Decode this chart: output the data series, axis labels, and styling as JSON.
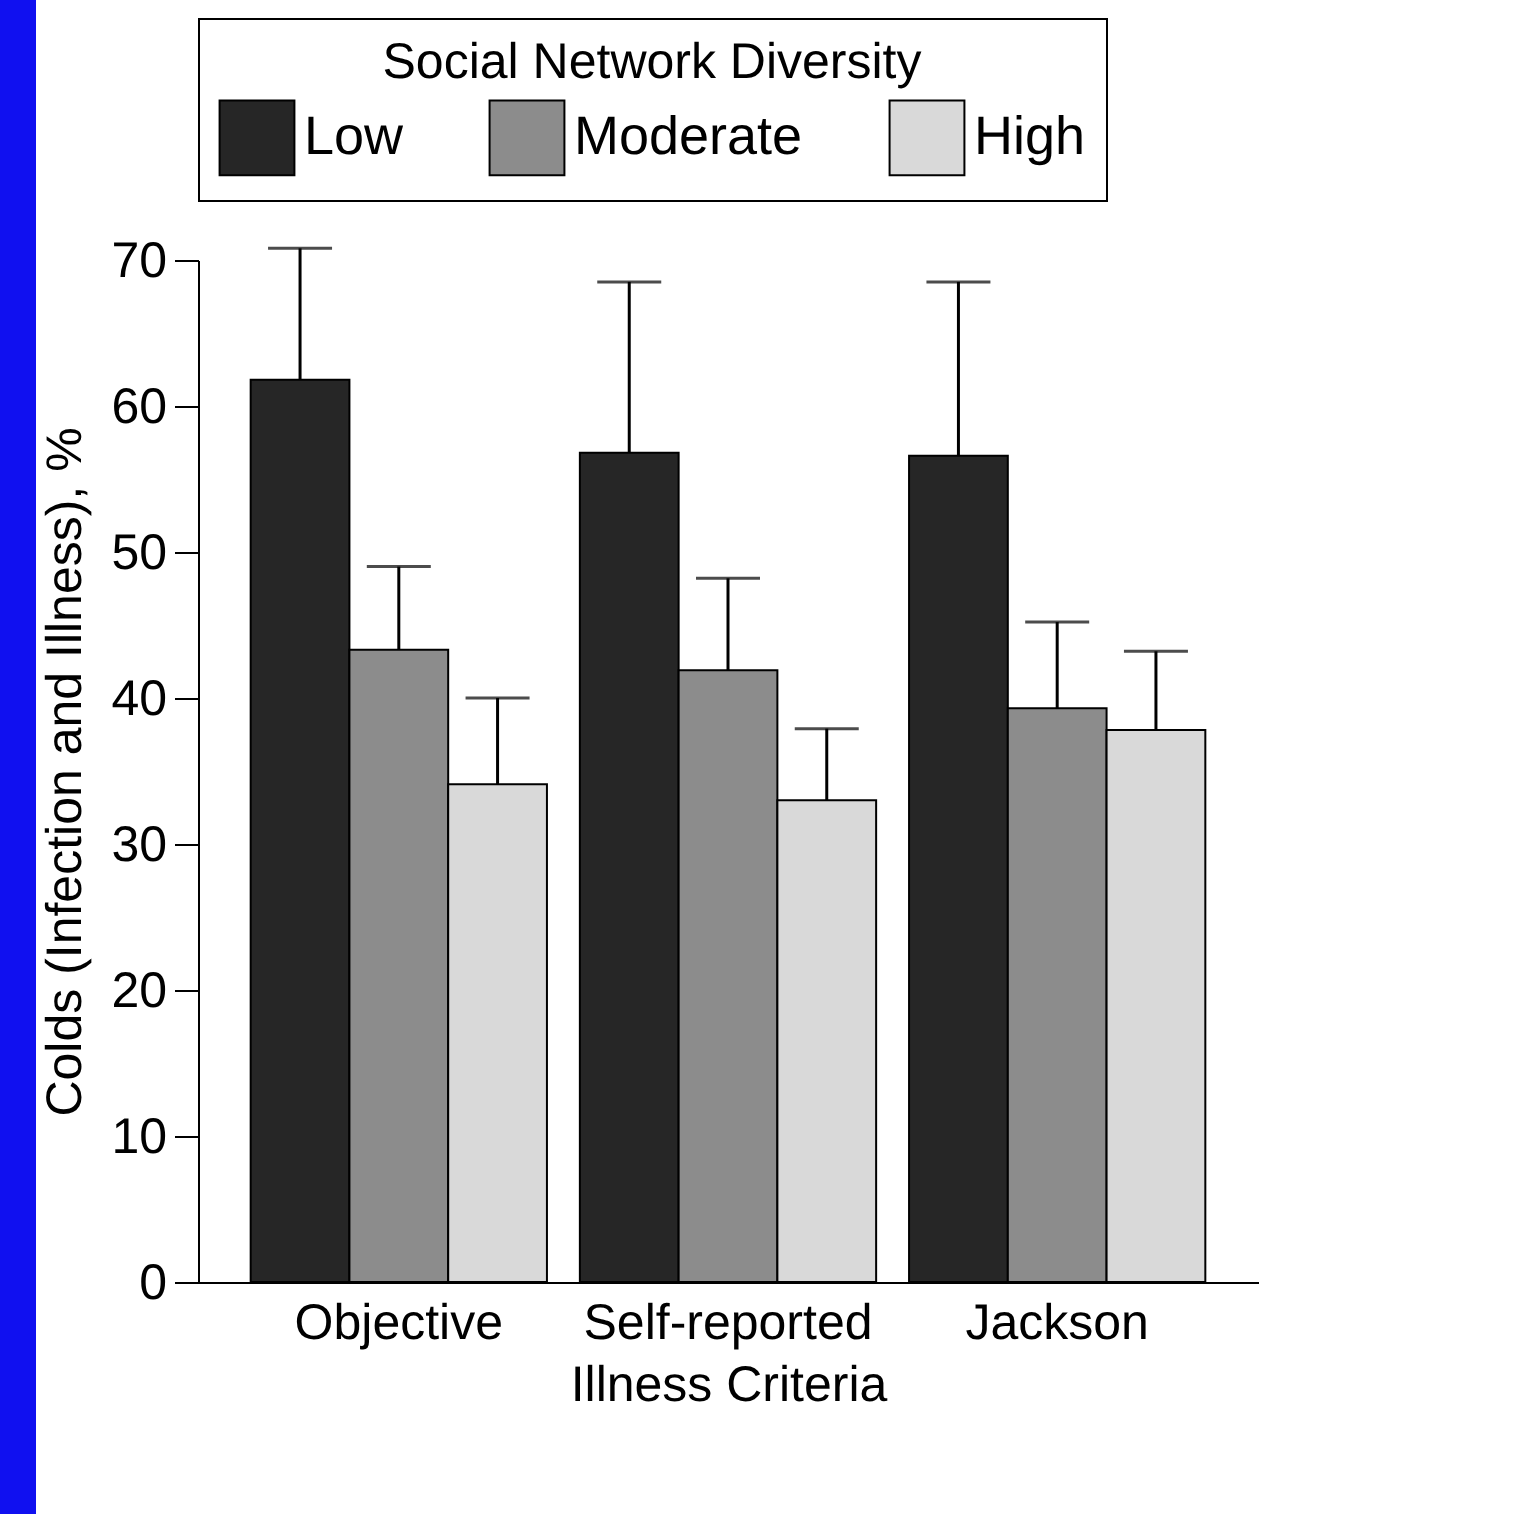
{
  "chart_data": {
    "type": "bar",
    "xlabel": "Illness Criteria",
    "ylabel": "Colds (Infection and Illness), %",
    "legend_title": "Social Network Diversity",
    "categories": [
      "Objective",
      "Self-reported",
      "Jackson"
    ],
    "series": [
      {
        "name": "Low",
        "color": "#262626",
        "values": [
          61.8,
          56.8,
          56.6
        ],
        "errors": [
          [
            61.8,
            70.8
          ],
          [
            56.8,
            68.5
          ],
          [
            56.6,
            68.5
          ]
        ]
      },
      {
        "name": "Moderate",
        "color": "#8c8c8c",
        "values": [
          43.3,
          41.9,
          39.3
        ],
        "errors": [
          [
            43.3,
            49.0
          ],
          [
            41.9,
            48.2
          ],
          [
            39.3,
            45.2
          ]
        ]
      },
      {
        "name": "High",
        "color": "#d9d9d9",
        "values": [
          34.1,
          33.0,
          37.8
        ],
        "errors": [
          [
            34.1,
            40.0
          ],
          [
            33.0,
            37.9
          ],
          [
            37.8,
            43.2
          ]
        ]
      }
    ],
    "ylim": [
      0,
      70
    ],
    "yticks": [
      0,
      10,
      20,
      30,
      40,
      50,
      60,
      70
    ],
    "grid": false,
    "legend": "top"
  }
}
